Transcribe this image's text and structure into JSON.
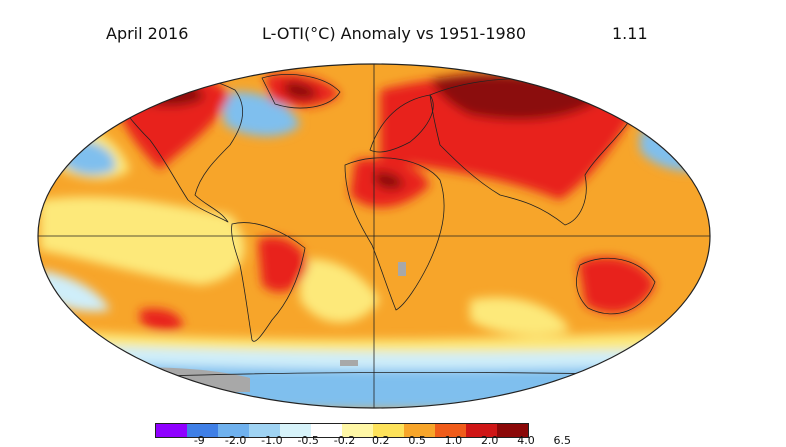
{
  "header": {
    "date": "April 2016",
    "title": "L-OTI(°C) Anomaly vs 1951-1980",
    "global_mean": "1.11"
  },
  "colors": {
    "ocean_base": "#f7a52a",
    "land_hot": "#e8221b",
    "very_hot": "#8b0a0a",
    "cold": "#7fbfee",
    "cool": "#cfeefa",
    "mild": "#fde97a",
    "missing": "#a8a8a8",
    "outline": "#222222"
  },
  "legend": {
    "colors": [
      "#8f00ff",
      "#3f7fe6",
      "#6fb1ee",
      "#9fd3f3",
      "#d7f3fa",
      "#ffffff",
      "#fff7a6",
      "#fde25a",
      "#f7a52a",
      "#f05c1a",
      "#cf1616",
      "#8b0808"
    ],
    "ticks": [
      "-9",
      "-2.0",
      "-1.0",
      "-0.5",
      "-0.2",
      "0.2",
      "0.5",
      "1.0",
      "2.0",
      "4.0",
      "6.5"
    ]
  }
}
